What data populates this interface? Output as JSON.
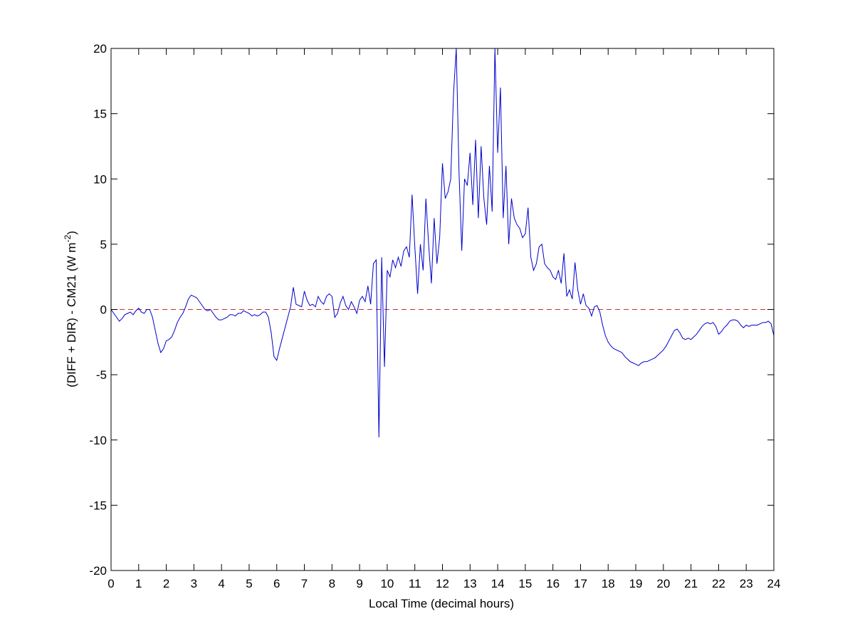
{
  "chart_data": {
    "type": "line",
    "xlabel": "Local Time (decimal hours)",
    "ylabel": {
      "text": "(DIFF + DIR) - CM21 (W m",
      "superscript": "-2",
      "end": ")"
    },
    "xlim": [
      0,
      24
    ],
    "ylim": [
      -20,
      20
    ],
    "xticks": [
      0,
      1,
      2,
      3,
      4,
      5,
      6,
      7,
      8,
      9,
      10,
      11,
      12,
      13,
      14,
      15,
      16,
      17,
      18,
      19,
      20,
      21,
      22,
      23,
      24
    ],
    "yticks": [
      -20,
      -15,
      -10,
      -5,
      0,
      5,
      10,
      15,
      20
    ],
    "reference_line": {
      "value": 0,
      "color": "#c03030",
      "dashed": true
    },
    "x": [
      0,
      0.1,
      0.2,
      0.3,
      0.4,
      0.5,
      0.6,
      0.7,
      0.8,
      0.9,
      1,
      1.1,
      1.2,
      1.3,
      1.4,
      1.5,
      1.6,
      1.7,
      1.8,
      1.9,
      2,
      2.1,
      2.2,
      2.3,
      2.4,
      2.5,
      2.6,
      2.7,
      2.8,
      2.9,
      3,
      3.1,
      3.2,
      3.3,
      3.4,
      3.5,
      3.6,
      3.7,
      3.8,
      3.9,
      4,
      4.1,
      4.2,
      4.3,
      4.4,
      4.5,
      4.6,
      4.7,
      4.8,
      4.9,
      5,
      5.1,
      5.2,
      5.3,
      5.4,
      5.5,
      5.6,
      5.7,
      5.8,
      5.9,
      6,
      6.1,
      6.2,
      6.3,
      6.4,
      6.5,
      6.6,
      6.7,
      6.8,
      6.9,
      7,
      7.1,
      7.2,
      7.3,
      7.4,
      7.5,
      7.6,
      7.7,
      7.8,
      7.9,
      8,
      8.1,
      8.2,
      8.3,
      8.4,
      8.5,
      8.6,
      8.7,
      8.8,
      8.9,
      9,
      9.1,
      9.2,
      9.3,
      9.4,
      9.5,
      9.6,
      9.7,
      9.8,
      9.9,
      10,
      10.1,
      10.2,
      10.3,
      10.4,
      10.5,
      10.6,
      10.7,
      10.8,
      10.9,
      11,
      11.1,
      11.2,
      11.3,
      11.4,
      11.5,
      11.6,
      11.7,
      11.8,
      11.9,
      12,
      12.1,
      12.2,
      12.3,
      12.4,
      12.5,
      12.6,
      12.7,
      12.8,
      12.9,
      13,
      13.1,
      13.2,
      13.3,
      13.4,
      13.5,
      13.6,
      13.7,
      13.8,
      13.9,
      14,
      14.1,
      14.2,
      14.3,
      14.4,
      14.5,
      14.6,
      14.7,
      14.8,
      14.9,
      15,
      15.1,
      15.2,
      15.3,
      15.4,
      15.5,
      15.6,
      15.7,
      15.8,
      15.9,
      16,
      16.1,
      16.2,
      16.3,
      16.4,
      16.5,
      16.6,
      16.7,
      16.8,
      16.9,
      17,
      17.1,
      17.2,
      17.3,
      17.4,
      17.5,
      17.6,
      17.7,
      17.8,
      17.9,
      18,
      18.1,
      18.2,
      18.3,
      18.4,
      18.5,
      18.6,
      18.7,
      18.8,
      18.9,
      19,
      19.1,
      19.2,
      19.3,
      19.4,
      19.5,
      19.6,
      19.7,
      19.8,
      19.9,
      20,
      20.1,
      20.2,
      20.3,
      20.4,
      20.5,
      20.6,
      20.7,
      20.8,
      20.9,
      21,
      21.1,
      21.2,
      21.3,
      21.4,
      21.5,
      21.6,
      21.7,
      21.8,
      21.9,
      22,
      22.1,
      22.2,
      22.3,
      22.4,
      22.5,
      22.6,
      22.7,
      22.8,
      22.9,
      23,
      23.1,
      23.2,
      23.3,
      23.4,
      23.5,
      23.6,
      23.7,
      23.8,
      23.9,
      24
    ],
    "series": [
      {
        "color": "#0000cc",
        "values": [
          0,
          -0.3,
          -0.6,
          -0.9,
          -0.7,
          -0.4,
          -0.3,
          -0.2,
          -0.4,
          -0.1,
          0.1,
          -0.2,
          -0.3,
          0,
          0,
          -0.6,
          -1.6,
          -2.6,
          -3.3,
          -3.0,
          -2.4,
          -2.3,
          -2.1,
          -1.6,
          -1.0,
          -0.6,
          -0.3,
          0.2,
          0.8,
          1.1,
          1.0,
          0.9,
          0.6,
          0.3,
          0,
          -0.1,
          0,
          -0.3,
          -0.6,
          -0.8,
          -0.8,
          -0.7,
          -0.6,
          -0.4,
          -0.4,
          -0.5,
          -0.3,
          -0.3,
          -0.1,
          -0.2,
          -0.3,
          -0.5,
          -0.4,
          -0.5,
          -0.4,
          -0.2,
          -0.2,
          -0.6,
          -1.8,
          -3.6,
          -3.9,
          -3.0,
          -2.2,
          -1.4,
          -0.6,
          0.2,
          1.7,
          0.4,
          0.3,
          0.2,
          1.4,
          0.7,
          0.3,
          0.4,
          0.2,
          1.0,
          0.6,
          0.4,
          1.0,
          1.2,
          1.0,
          -0.6,
          -0.3,
          0.5,
          1.0,
          0.3,
          0,
          0.6,
          0.2,
          -0.3,
          0.7,
          1.0,
          0.6,
          1.8,
          0.4,
          3.5,
          3.8,
          -9.8,
          4.0,
          -4.4,
          3.0,
          2.5,
          3.8,
          3.2,
          4.0,
          3.3,
          4.5,
          4.8,
          4.0,
          8.8,
          4.8,
          1.2,
          5.0,
          3.0,
          8.5,
          5.0,
          2.0,
          7.0,
          3.5,
          5.5,
          11.2,
          8.5,
          9.0,
          10.0,
          16.5,
          20,
          10.5,
          4.5,
          10.0,
          9.5,
          12.0,
          8.0,
          13.0,
          7.0,
          12.5,
          8.5,
          6.5,
          11.0,
          7.5,
          20,
          12.0,
          17.0,
          7.0,
          11.0,
          5.0,
          8.5,
          7.0,
          6.5,
          6.2,
          5.5,
          5.8,
          7.8,
          4.0,
          3.0,
          3.5,
          4.8,
          5.0,
          3.5,
          3.2,
          3.0,
          2.5,
          2.3,
          3.0,
          2.0,
          4.3,
          1.0,
          1.5,
          0.8,
          3.6,
          1.5,
          0.4,
          1.2,
          0.3,
          0.1,
          -0.5,
          0.2,
          0.3,
          -0.2,
          -1.2,
          -2.0,
          -2.5,
          -2.8,
          -3.0,
          -3.1,
          -3.2,
          -3.3,
          -3.6,
          -3.8,
          -4.0,
          -4.1,
          -4.2,
          -4.3,
          -4.1,
          -4.0,
          -4.0,
          -3.9,
          -3.8,
          -3.7,
          -3.5,
          -3.3,
          -3.1,
          -2.8,
          -2.4,
          -2.0,
          -1.6,
          -1.5,
          -1.8,
          -2.2,
          -2.3,
          -2.2,
          -2.3,
          -2.1,
          -1.9,
          -1.6,
          -1.3,
          -1.1,
          -1.0,
          -1.1,
          -1.0,
          -1.3,
          -1.9,
          -1.7,
          -1.4,
          -1.2,
          -0.9,
          -0.8,
          -0.8,
          -0.9,
          -1.2,
          -1.4,
          -1.2,
          -1.3,
          -1.2,
          -1.2,
          -1.2,
          -1.1,
          -1.0,
          -1.0,
          -0.9,
          -1.1,
          -2.0
        ]
      }
    ]
  }
}
